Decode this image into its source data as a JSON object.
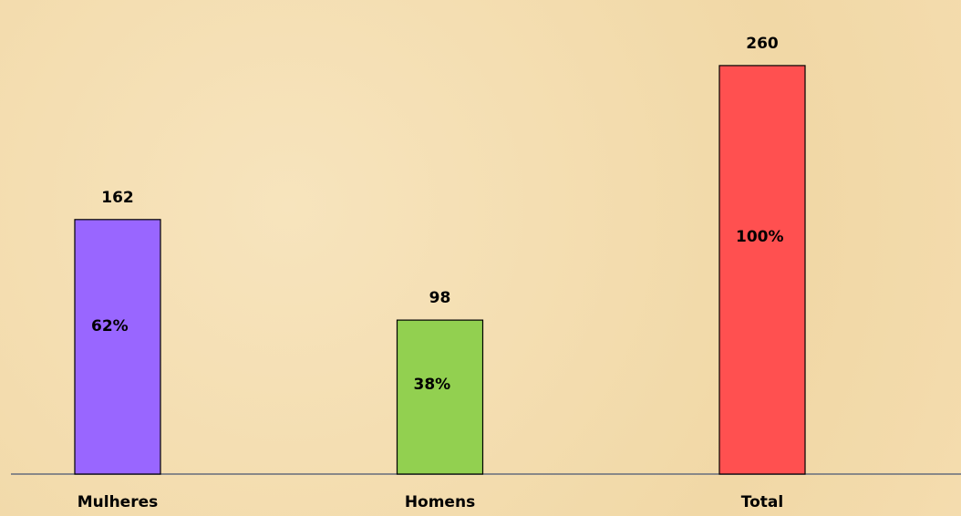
{
  "chart_data": {
    "type": "bar",
    "categories": [
      "Mulheres",
      "Homens",
      "Total"
    ],
    "values": [
      162,
      98,
      260
    ],
    "colors": [
      "#9966ff",
      "#92d050",
      "#ff5050"
    ],
    "percent_values": [
      62,
      38,
      100
    ],
    "percent_labels": [
      "62%",
      "38%",
      "100%"
    ],
    "ylim": [
      0,
      300
    ]
  }
}
